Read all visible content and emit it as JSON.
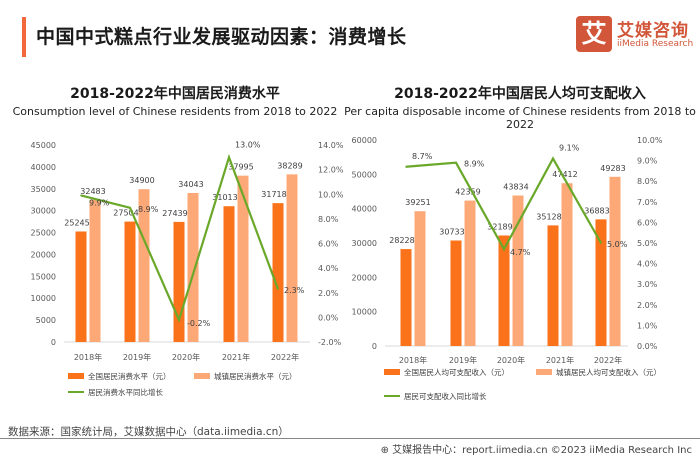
{
  "header": {
    "title": "中国中式糕点行业发展驱动因素：消费增长",
    "accent_color": "#f2683a"
  },
  "logo": {
    "glyph": "艾",
    "name_cn": "艾媒咨询",
    "name_en": "iiMedia Research",
    "color": "#d2573a"
  },
  "colors": {
    "bar_dark": "#fa7219",
    "bar_light": "#fca877",
    "line": "#6aa82a",
    "axis_text": "#595959",
    "label_text": "#404040"
  },
  "chart_data": [
    {
      "type": "bar",
      "title": "2018-2022年中国居民消费水平",
      "subtitle": "Consumption level of Chinese residents from 2018 to 2022",
      "categories": [
        "2018年",
        "2019年",
        "2020年",
        "2021年",
        "2022年"
      ],
      "series": [
        {
          "name": "全国居民消费水平（元）",
          "type": "bar",
          "axis": "left",
          "values": [
            25245,
            27504,
            27439,
            31013,
            31718
          ]
        },
        {
          "name": "城镇居民消费水平（元）",
          "type": "bar",
          "axis": "left",
          "values": [
            32483,
            34900,
            34043,
            37995,
            38289
          ]
        },
        {
          "name": "居民消费水平同比增长",
          "type": "line",
          "axis": "right",
          "values": [
            9.9,
            8.9,
            -0.2,
            13.0,
            2.3
          ],
          "labels": [
            "9.9%",
            "8.9%",
            "-0.2%",
            "13.0%",
            "2.3%"
          ]
        }
      ],
      "ylim": [
        0,
        45000
      ],
      "y_ticks": [
        "0",
        "5000",
        "10000",
        "15000",
        "20000",
        "25000",
        "30000",
        "35000",
        "40000",
        "45000"
      ],
      "y2lim": [
        -2,
        14
      ],
      "y2_ticks": [
        "-2.0%",
        "0.0%",
        "2.0%",
        "4.0%",
        "6.0%",
        "8.0%",
        "10.0%",
        "12.0%",
        "14.0%"
      ],
      "legend": "bottom",
      "grid": false
    },
    {
      "type": "bar",
      "title": "2018-2022年中国居民人均可支配收入",
      "subtitle": "Per capita disposable income of Chinese residents from 2018 to 2022",
      "categories": [
        "2018年",
        "2019年",
        "2020年",
        "2021年",
        "2022年"
      ],
      "series": [
        {
          "name": "全国居民人均可支配收入（元）",
          "type": "bar",
          "axis": "left",
          "values": [
            28228,
            30733,
            32189,
            35128,
            36883
          ]
        },
        {
          "name": "城镇居民人均可支配收入（元）",
          "type": "bar",
          "axis": "left",
          "values": [
            39251,
            42359,
            43834,
            47412,
            49283
          ]
        },
        {
          "name": "居民可支配收入同比增长",
          "type": "line",
          "axis": "right",
          "values": [
            8.7,
            8.9,
            4.7,
            9.1,
            5.0
          ],
          "labels": [
            "8.7%",
            "8.9%",
            "4.7%",
            "9.1%",
            "5.0%"
          ]
        }
      ],
      "ylim": [
        0,
        60000
      ],
      "y_ticks": [
        "0",
        "10000",
        "20000",
        "30000",
        "40000",
        "50000",
        "60000"
      ],
      "y2lim": [
        0,
        10
      ],
      "y2_ticks": [
        "0.0%",
        "1.0%",
        "2.0%",
        "3.0%",
        "4.0%",
        "5.0%",
        "6.0%",
        "7.0%",
        "8.0%",
        "9.0%",
        "10.0%"
      ],
      "legend": "bottom",
      "grid": false
    }
  ],
  "footer": {
    "source": "数据来源：国家统计局，艾媒数据中心（data.iimedia.cn）",
    "report": "艾媒报告中心：report.iimedia.cn  ©2023  iiMedia Research  Inc"
  }
}
